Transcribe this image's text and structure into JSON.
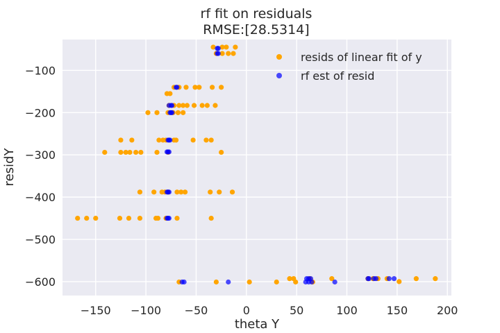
{
  "chart_data": {
    "type": "scatter",
    "title": "rf fit on residuals",
    "subtitle": "RMSE:[28.5314]",
    "xlabel": "theta Y",
    "ylabel": "residY",
    "xlim": [
      -183,
      204
    ],
    "ylim": [
      -633,
      -27
    ],
    "x_ticks": [
      -150,
      -100,
      -50,
      0,
      50,
      100,
      150,
      200
    ],
    "y_ticks": [
      -100,
      -200,
      -300,
      -400,
      -500,
      -600
    ],
    "x_tick_labels": [
      "−150",
      "−100",
      "−50",
      "0",
      "50",
      "100",
      "150",
      "200"
    ],
    "y_tick_labels": [
      "−100",
      "−200",
      "−300",
      "−400",
      "−500",
      "−600"
    ],
    "grid": true,
    "legend_position": "top-right",
    "background_color": "#eaeaf2",
    "series": [
      {
        "name": "resids of linear fit of y",
        "color": "#ffa500",
        "points": [
          [
            -33,
            -45
          ],
          [
            -24,
            -45
          ],
          [
            -20,
            -45
          ],
          [
            -11,
            -45
          ],
          [
            -30,
            -60
          ],
          [
            -24,
            -60
          ],
          [
            -18,
            -60
          ],
          [
            -13,
            -60
          ],
          [
            -72,
            -140
          ],
          [
            -67,
            -140
          ],
          [
            -60,
            -140
          ],
          [
            -51,
            -140
          ],
          [
            -47,
            -140
          ],
          [
            -34,
            -140
          ],
          [
            -25,
            -140
          ],
          [
            -79,
            -155
          ],
          [
            -76,
            -155
          ],
          [
            -77,
            -183
          ],
          [
            -72,
            -183
          ],
          [
            -67,
            -183
          ],
          [
            -63,
            -183
          ],
          [
            -59,
            -183
          ],
          [
            -52,
            -183
          ],
          [
            -44,
            -183
          ],
          [
            -39,
            -183
          ],
          [
            -31,
            -183
          ],
          [
            -98,
            -200
          ],
          [
            -89,
            -200
          ],
          [
            -78,
            -200
          ],
          [
            -73,
            -200
          ],
          [
            -68,
            -200
          ],
          [
            -63,
            -200
          ],
          [
            -125,
            -265
          ],
          [
            -114,
            -265
          ],
          [
            -87,
            -265
          ],
          [
            -83,
            -265
          ],
          [
            -80,
            -265
          ],
          [
            -72,
            -265
          ],
          [
            -70,
            -265
          ],
          [
            -53,
            -265
          ],
          [
            -40,
            -265
          ],
          [
            -35,
            -265
          ],
          [
            -141,
            -294
          ],
          [
            -125,
            -294
          ],
          [
            -120,
            -294
          ],
          [
            -116,
            -294
          ],
          [
            -110,
            -294
          ],
          [
            -105,
            -294
          ],
          [
            -89,
            -294
          ],
          [
            -78,
            -294
          ],
          [
            -25,
            -294
          ],
          [
            -106,
            -388
          ],
          [
            -92,
            -388
          ],
          [
            -84,
            -388
          ],
          [
            -81,
            -388
          ],
          [
            -78,
            -388
          ],
          [
            -69,
            -388
          ],
          [
            -65,
            -388
          ],
          [
            -61,
            -388
          ],
          [
            -36,
            -388
          ],
          [
            -27,
            -388
          ],
          [
            -14,
            -388
          ],
          [
            -168,
            -450
          ],
          [
            -159,
            -450
          ],
          [
            -150,
            -450
          ],
          [
            -126,
            -450
          ],
          [
            -117,
            -450
          ],
          [
            -106,
            -450
          ],
          [
            -90,
            -450
          ],
          [
            -88,
            -450
          ],
          [
            -80,
            -450
          ],
          [
            -69,
            -450
          ],
          [
            -35,
            -450
          ],
          [
            -67,
            -601
          ],
          [
            -30,
            -601
          ],
          [
            3,
            -601
          ],
          [
            30,
            -601
          ],
          [
            49,
            -601
          ],
          [
            66,
            -601
          ],
          [
            43,
            -593
          ],
          [
            47,
            -593
          ],
          [
            63,
            -593
          ],
          [
            85,
            -593
          ],
          [
            121,
            -593
          ],
          [
            126,
            -593
          ],
          [
            131,
            -593
          ],
          [
            140,
            -593
          ],
          [
            152,
            -600
          ],
          [
            169,
            -593
          ],
          [
            188,
            -593
          ]
        ]
      },
      {
        "name": "rf est of resid",
        "color": "#0000ff",
        "points": [
          [
            -29,
            -48
          ],
          [
            -28,
            -48
          ],
          [
            -29,
            -60
          ],
          [
            -28,
            -60
          ],
          [
            -70,
            -140
          ],
          [
            -69,
            -140
          ],
          [
            -77,
            -183
          ],
          [
            -74,
            -183
          ],
          [
            -75,
            -183
          ],
          [
            -74,
            -200
          ],
          [
            -75,
            -200
          ],
          [
            -76,
            -200
          ],
          [
            -78,
            -265
          ],
          [
            -77,
            -265
          ],
          [
            -76,
            -265
          ],
          [
            -79,
            -293
          ],
          [
            -78,
            -293
          ],
          [
            -77,
            -293
          ],
          [
            -79,
            -388
          ],
          [
            -78,
            -388
          ],
          [
            -77,
            -388
          ],
          [
            -79,
            -450
          ],
          [
            -78,
            -450
          ],
          [
            -77,
            -450
          ],
          [
            -64,
            -601
          ],
          [
            -62,
            -601
          ],
          [
            -18,
            -601
          ],
          [
            59,
            -601
          ],
          [
            60,
            -593
          ],
          [
            62,
            -593
          ],
          [
            62,
            -601
          ],
          [
            64,
            -593
          ],
          [
            65,
            -601
          ],
          [
            88,
            -601
          ],
          [
            121,
            -593
          ],
          [
            122,
            -593
          ],
          [
            127,
            -593
          ],
          [
            129,
            -593
          ],
          [
            142,
            -593
          ],
          [
            147,
            -593
          ]
        ]
      }
    ]
  }
}
